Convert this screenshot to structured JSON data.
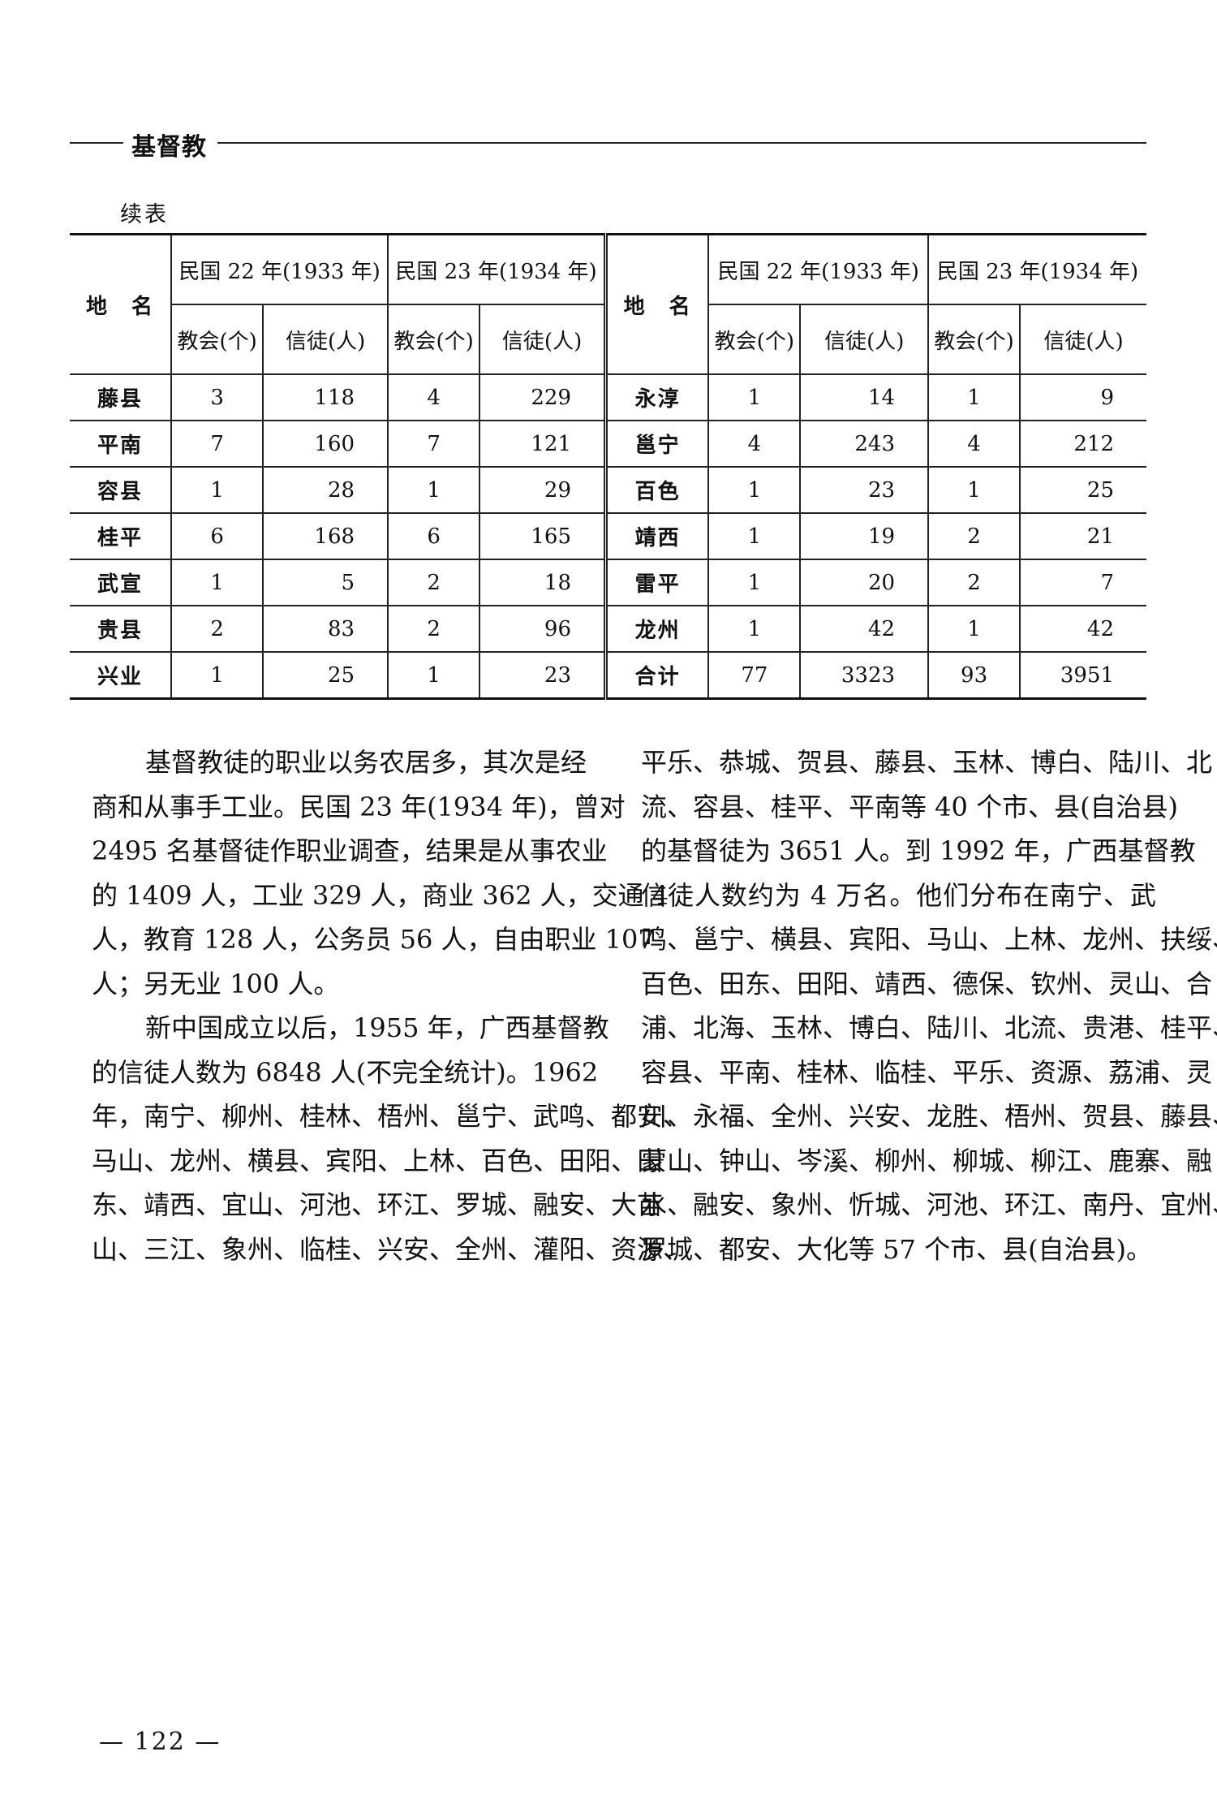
{
  "header": {
    "running_head": "基督教"
  },
  "table": {
    "caption": "续表",
    "name_header": "地　名",
    "year_headers": [
      "民国 22 年(1933 年)",
      "民国 23 年(1934 年)"
    ],
    "sub_headers": [
      "教会(个)",
      "信徒(人)",
      "教会(个)",
      "信徒(人)"
    ],
    "left_rows": [
      {
        "name": "藤县",
        "values": [
          "3",
          "118",
          "4",
          "229"
        ]
      },
      {
        "name": "平南",
        "values": [
          "7",
          "160",
          "7",
          "121"
        ]
      },
      {
        "name": "容县",
        "values": [
          "1",
          "28",
          "1",
          "29"
        ]
      },
      {
        "name": "桂平",
        "values": [
          "6",
          "168",
          "6",
          "165"
        ]
      },
      {
        "name": "武宣",
        "values": [
          "1",
          "5",
          "2",
          "18"
        ]
      },
      {
        "name": "贵县",
        "values": [
          "2",
          "83",
          "2",
          "96"
        ]
      },
      {
        "name": "兴业",
        "values": [
          "1",
          "25",
          "1",
          "23"
        ]
      }
    ],
    "right_rows": [
      {
        "name": "永淳",
        "values": [
          "1",
          "14",
          "1",
          "9"
        ]
      },
      {
        "name": "邕宁",
        "values": [
          "4",
          "243",
          "4",
          "212"
        ]
      },
      {
        "name": "百色",
        "values": [
          "1",
          "23",
          "1",
          "25"
        ]
      },
      {
        "name": "靖西",
        "values": [
          "1",
          "19",
          "2",
          "21"
        ]
      },
      {
        "name": "雷平",
        "values": [
          "1",
          "20",
          "2",
          "7"
        ]
      },
      {
        "name": "龙州",
        "values": [
          "1",
          "42",
          "1",
          "42"
        ]
      },
      {
        "name": "合计",
        "values": [
          "77",
          "3323",
          "93",
          "3951"
        ]
      }
    ]
  },
  "body": {
    "left_column": [
      "基督教徒的职业以务农居多，其次是经",
      "商和从事手工业。民国 23 年(1934 年)，曾对",
      "2495 名基督徒作职业调查，结果是从事农业",
      "的 1409 人，工业 329 人，商业 362 人，交通 4",
      "人，教育 128 人，公务员 56 人，自由职业 107",
      "人；另无业 100 人。",
      "新中国成立以后，1955 年，广西基督教",
      "的信徒人数为 6848 人(不完全统计)。1962",
      "年，南宁、柳州、桂林、梧州、邕宁、武鸣、都安、",
      "马山、龙州、横县、宾阳、上林、百色、田阳、田",
      "东、靖西、宜山、河池、环江、罗城、融安、大苗",
      "山、三江、象州、临桂、兴安、全州、灌阳、资源、"
    ],
    "right_column": [
      "平乐、恭城、贺县、藤县、玉林、博白、陆川、北",
      "流、容县、桂平、平南等 40 个市、县(自治县)",
      "的基督徒为 3651 人。到 1992 年，广西基督教",
      "信徒人数约为 4 万名。他们分布在南宁、武",
      "鸣、邕宁、横县、宾阳、马山、上林、龙州、扶绥、",
      "百色、田东、田阳、靖西、德保、钦州、灵山、合",
      "浦、北海、玉林、博白、陆川、北流、贵港、桂平、",
      "容县、平南、桂林、临桂、平乐、资源、荔浦、灵",
      "川、永福、全州、兴安、龙胜、梧州、贺县、藤县、",
      "蒙山、钟山、岑溪、柳州、柳城、柳江、鹿寨、融",
      "水、融安、象州、忻城、河池、环江、南丹、宜州、",
      "罗城、都安、大化等 57 个市、县(自治县)。"
    ]
  },
  "footer": {
    "page_number": "— 122 —"
  }
}
